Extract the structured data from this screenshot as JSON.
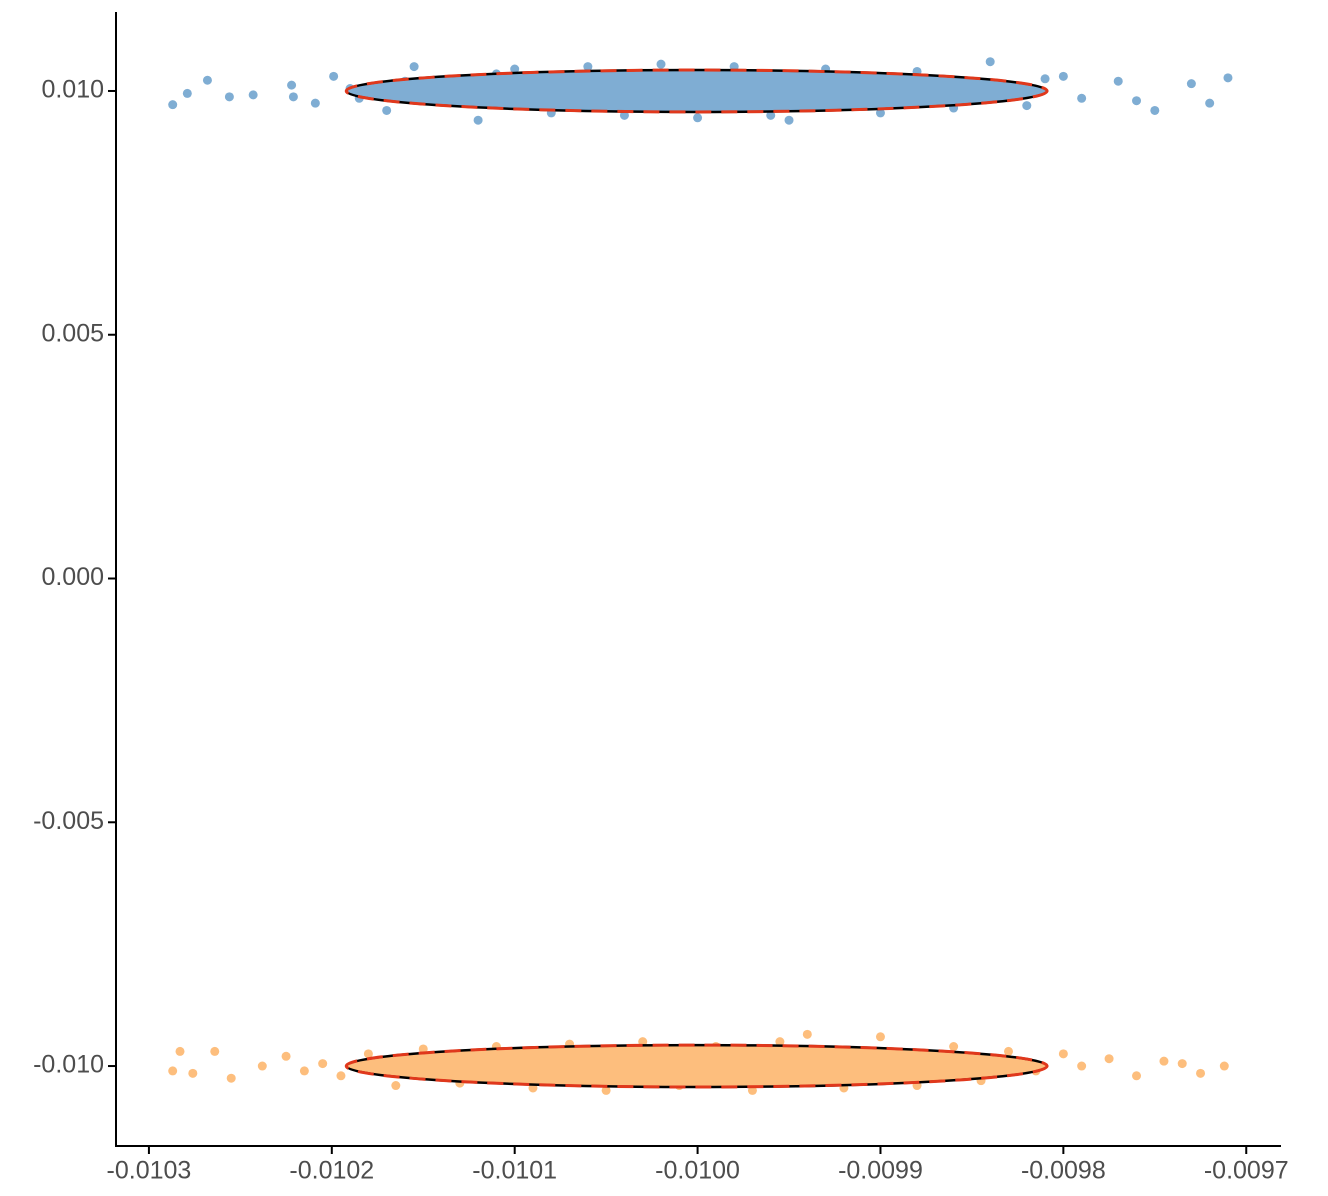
{
  "chart_data": {
    "type": "scatter",
    "xlim": [
      -0.010318,
      -0.009681
    ],
    "ylim": [
      -0.01164,
      0.01162
    ],
    "xticks": [
      -0.0103,
      -0.0102,
      -0.0101,
      {
        "value": -0.01,
        "label": "-0.0100"
      },
      -0.0099,
      -0.0098,
      -0.0097
    ],
    "yticks": [
      {
        "value": -0.01,
        "label": "-0.010"
      },
      -0.005,
      {
        "value": 0,
        "label": "0.000"
      },
      0.005,
      {
        "value": 0.01,
        "label": "0.010"
      }
    ],
    "ellipse_stroke": "#000000",
    "ellipse_dash_color": "#e0381c",
    "series": [
      {
        "color": "#7fadd3",
        "x": [
          -0.010287,
          -0.010279,
          -0.010268,
          -0.010256,
          -0.010243,
          -0.010222,
          -0.010221,
          -0.010209,
          -0.010199,
          -0.01019,
          -0.010185,
          -0.01017,
          -0.01016,
          -0.010155,
          -0.01014,
          -0.01012,
          -0.01011,
          -0.0101,
          -0.01008,
          -0.01006,
          -0.01004,
          -0.01002,
          -0.01,
          -0.00998,
          -0.00996,
          -0.00995,
          -0.00993,
          -0.0099,
          -0.00988,
          -0.00986,
          -0.00984,
          -0.009825,
          -0.00982,
          -0.00981,
          -0.0098,
          -0.00979,
          -0.00977,
          -0.00976,
          -0.00975,
          -0.00973,
          -0.00972,
          -0.00971
        ],
        "y": [
          0.00972,
          0.00995,
          0.01022,
          0.00988,
          0.00992,
          0.01012,
          0.00988,
          0.00975,
          0.0103,
          0.01005,
          0.00985,
          0.0096,
          0.0102,
          0.0105,
          0.00985,
          0.0094,
          0.01035,
          0.01045,
          0.00955,
          0.0105,
          0.0095,
          0.01055,
          0.00945,
          0.0105,
          0.0095,
          0.0094,
          0.01045,
          0.00955,
          0.0104,
          0.00965,
          0.0106,
          0.0099,
          0.0097,
          0.01025,
          0.0103,
          0.00985,
          0.0102,
          0.0098,
          0.0096,
          0.01015,
          0.00975,
          0.01027
        ],
        "ellipse": {
          "cx": -0.0100005,
          "cy": 0.01,
          "rx": 0.0001916,
          "ry": 0.00043
        }
      },
      {
        "color": "#fdbe7d",
        "x": [
          -0.010287,
          -0.010283,
          -0.010276,
          -0.010264,
          -0.010255,
          -0.010238,
          -0.010225,
          -0.010215,
          -0.010205,
          -0.010195,
          -0.01018,
          -0.010165,
          -0.01015,
          -0.01013,
          -0.01011,
          -0.01009,
          -0.01007,
          -0.01005,
          -0.01003,
          -0.01001,
          -0.00999,
          -0.00997,
          -0.009955,
          -0.00994,
          -0.00992,
          -0.0099,
          -0.00988,
          -0.00986,
          -0.009845,
          -0.00983,
          -0.009815,
          -0.0098,
          -0.00979,
          -0.009775,
          -0.00976,
          -0.009745,
          -0.009735,
          -0.009725,
          -0.009712
        ],
        "y": [
          -0.0101,
          -0.0097,
          -0.01015,
          -0.0097,
          -0.01025,
          -0.01,
          -0.0098,
          -0.0101,
          -0.00995,
          -0.0102,
          -0.00975,
          -0.0104,
          -0.00965,
          -0.01035,
          -0.0096,
          -0.01045,
          -0.00955,
          -0.0105,
          -0.0095,
          -0.0104,
          -0.0096,
          -0.0105,
          -0.0095,
          -0.00935,
          -0.01045,
          -0.0094,
          -0.0104,
          -0.0096,
          -0.0103,
          -0.0097,
          -0.0101,
          -0.00975,
          -0.01,
          -0.00985,
          -0.0102,
          -0.0099,
          -0.00995,
          -0.01015,
          -0.01
        ],
        "ellipse": {
          "cx": -0.0100005,
          "cy": -0.01,
          "rx": 0.0001916,
          "ry": 0.00043
        }
      }
    ]
  }
}
